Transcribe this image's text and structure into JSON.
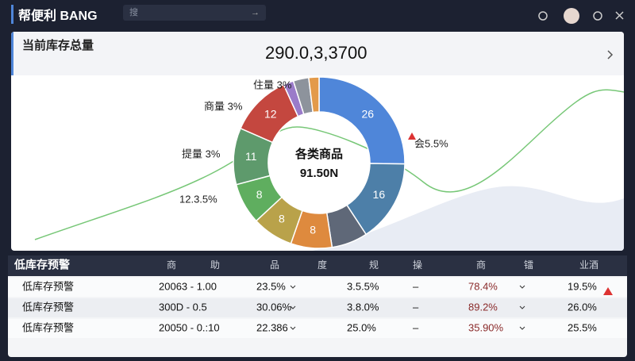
{
  "header": {
    "brand": "帮便利 BANG",
    "search": "搜"
  },
  "panel": {
    "title": "当前库存总量",
    "total": "290.0,3,3700"
  },
  "donut": {
    "center_title": "各类商品",
    "center_value": "91.50N",
    "segments": [
      {
        "value": 26,
        "label": "26",
        "color": "#4f86d9"
      },
      {
        "value": 16,
        "label": "16",
        "color": "#4d7fa8"
      },
      {
        "value": 7,
        "color": "#5f6878"
      },
      {
        "value": 8,
        "label": "8",
        "color": "#de8a3e"
      },
      {
        "value": 8,
        "label": "8",
        "color": "#b9a24a"
      },
      {
        "value": 8,
        "label": "8",
        "color": "#5fae5f"
      },
      {
        "value": 11,
        "label": "11",
        "color": "#5e9a6c"
      },
      {
        "value": 12,
        "label": "12",
        "color": "#c4473f"
      },
      {
        "value": 2,
        "color": "#9a7bc9"
      },
      {
        "value": 3,
        "color": "#8d939c"
      },
      {
        "value": 2,
        "color": "#e39a4a"
      }
    ],
    "callouts": [
      "住量 3%",
      "商量 3%",
      "提量 3%",
      "12.3.5%",
      "会5.5%"
    ]
  },
  "table": {
    "title": "低库存预警",
    "headers": [
      "商",
      "助",
      "品",
      "度",
      "规",
      "操",
      "商",
      "镭",
      "业酒"
    ],
    "rows": [
      [
        "低库存预警",
        "20063 - 1.00",
        "23.5%",
        "3.5.5%",
        "–",
        "78.4%",
        "19.5%"
      ],
      [
        "低库存预警",
        "300D - 0.5",
        "30.06%",
        "3.8.0%",
        "–",
        "89.2%",
        "26.0%"
      ],
      [
        "低库存预警",
        "20050 - 0.:10",
        "22.386",
        "25.0%",
        "–",
        "35.90%",
        "25.5%"
      ]
    ]
  }
}
